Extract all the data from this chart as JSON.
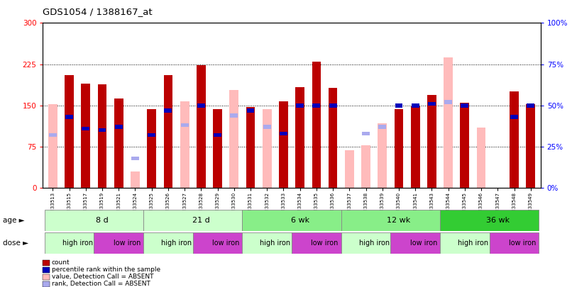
{
  "title": "GDS1054 / 1388167_at",
  "samples": [
    "GSM33513",
    "GSM33515",
    "GSM33517",
    "GSM33519",
    "GSM33521",
    "GSM33524",
    "GSM33525",
    "GSM33526",
    "GSM33527",
    "GSM33528",
    "GSM33529",
    "GSM33530",
    "GSM33531",
    "GSM33532",
    "GSM33533",
    "GSM33534",
    "GSM33535",
    "GSM33536",
    "GSM33537",
    "GSM33538",
    "GSM33539",
    "GSM33540",
    "GSM33541",
    "GSM33543",
    "GSM33544",
    "GSM33545",
    "GSM33546",
    "GSM33547",
    "GSM33548",
    "GSM33549"
  ],
  "count_red": [
    0,
    205,
    190,
    188,
    163,
    0,
    143,
    205,
    0,
    223,
    143,
    0,
    147,
    0,
    158,
    183,
    230,
    182,
    0,
    0,
    0,
    143,
    148,
    169,
    0,
    155,
    0,
    0,
    175,
    152
  ],
  "value_pink": [
    152,
    0,
    0,
    0,
    0,
    30,
    0,
    0,
    158,
    0,
    0,
    178,
    0,
    143,
    0,
    0,
    0,
    0,
    68,
    78,
    118,
    0,
    0,
    0,
    238,
    0,
    110,
    0,
    0,
    0
  ],
  "rank_blue_pct": [
    0,
    43,
    36,
    35,
    37,
    0,
    32,
    47,
    0,
    50,
    32,
    0,
    47,
    0,
    33,
    50,
    50,
    50,
    0,
    0,
    0,
    50,
    50,
    51,
    0,
    50,
    0,
    0,
    43,
    50
  ],
  "rank_absent_pct": [
    32,
    0,
    0,
    0,
    0,
    18,
    0,
    0,
    38,
    0,
    0,
    44,
    0,
    37,
    0,
    0,
    0,
    0,
    0,
    33,
    37,
    0,
    0,
    0,
    52,
    0,
    0,
    0,
    0,
    0
  ],
  "ylim_left": [
    0,
    300
  ],
  "ylim_right": [
    0,
    100
  ],
  "yticks_left": [
    0,
    75,
    150,
    225,
    300
  ],
  "yticks_right": [
    0,
    25,
    50,
    75,
    100
  ],
  "color_red": "#bb0000",
  "color_pink": "#ffbbbb",
  "color_blue": "#0000bb",
  "color_lblue": "#aaaaee",
  "age_groups": [
    {
      "label": "8 d",
      "start": 0,
      "end": 6,
      "color": "#ccffcc"
    },
    {
      "label": "21 d",
      "start": 6,
      "end": 12,
      "color": "#ccffcc"
    },
    {
      "label": "6 wk",
      "start": 12,
      "end": 18,
      "color": "#88ee88"
    },
    {
      "label": "12 wk",
      "start": 18,
      "end": 24,
      "color": "#88ee88"
    },
    {
      "label": "36 wk",
      "start": 24,
      "end": 30,
      "color": "#33cc33"
    }
  ],
  "dose_groups": [
    {
      "label": "high iron",
      "start": 0,
      "end": 3,
      "color": "#ccffcc"
    },
    {
      "label": "low iron",
      "start": 3,
      "end": 6,
      "color": "#cc44cc"
    },
    {
      "label": "high iron",
      "start": 6,
      "end": 9,
      "color": "#ccffcc"
    },
    {
      "label": "low iron",
      "start": 9,
      "end": 12,
      "color": "#cc44cc"
    },
    {
      "label": "high iron",
      "start": 12,
      "end": 15,
      "color": "#ccffcc"
    },
    {
      "label": "low iron",
      "start": 15,
      "end": 18,
      "color": "#cc44cc"
    },
    {
      "label": "high iron",
      "start": 18,
      "end": 21,
      "color": "#ccffcc"
    },
    {
      "label": "low iron",
      "start": 21,
      "end": 24,
      "color": "#cc44cc"
    },
    {
      "label": "high iron",
      "start": 24,
      "end": 27,
      "color": "#ccffcc"
    },
    {
      "label": "low iron",
      "start": 27,
      "end": 30,
      "color": "#cc44cc"
    }
  ]
}
